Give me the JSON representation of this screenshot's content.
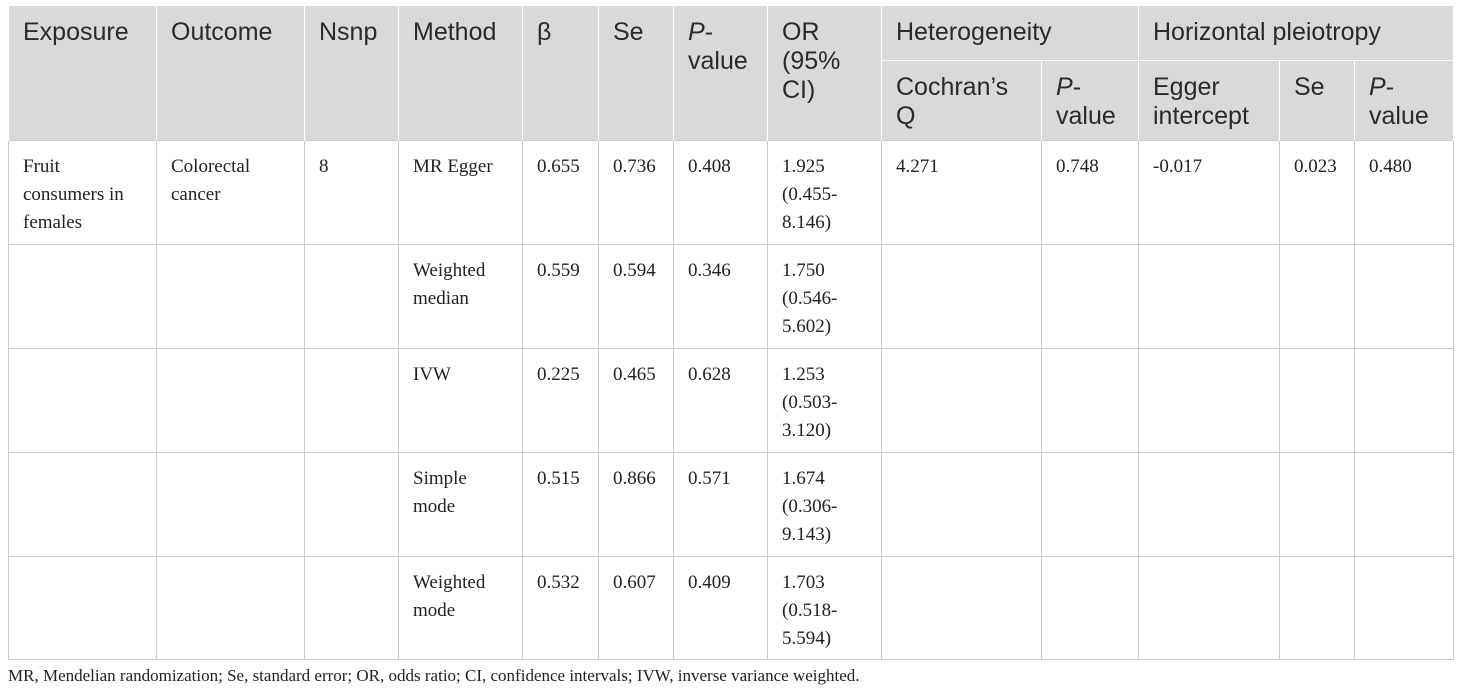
{
  "header": {
    "exposure": "Exposure",
    "outcome": "Outcome",
    "nsnp": "Nsnp",
    "method": "Method",
    "beta": "β",
    "se": "Se",
    "p_italic": "P",
    "p_rest": "-value",
    "or": "OR (95% CI)",
    "heterogeneity": "Heterogeneity",
    "horizontal_pleiotropy": "Horizontal pleiotropy",
    "cochrans_q": "Cochran’s Q",
    "het_p_italic": "P",
    "het_p_rest": "-value",
    "egger_intercept": "Egger intercept",
    "pleio_se": "Se",
    "pleio_p_italic": "P",
    "pleio_p_rest": "-value"
  },
  "rows": [
    {
      "exposure": "Fruit consumers in females",
      "outcome": "Colorectal cancer",
      "nsnp": "8",
      "method": "MR Egger",
      "beta": "0.655",
      "se": "0.736",
      "p": "0.408",
      "or": "1.925 (0.455-8.146)",
      "cochrans_q": "4.271",
      "het_p": "0.748",
      "egger_intercept": "-0.017",
      "pleio_se": "0.023",
      "pleio_p": "0.480"
    },
    {
      "exposure": "",
      "outcome": "",
      "nsnp": "",
      "method": "Weighted median",
      "beta": "0.559",
      "se": "0.594",
      "p": "0.346",
      "or": "1.750 (0.546-5.602)",
      "cochrans_q": "",
      "het_p": "",
      "egger_intercept": "",
      "pleio_se": "",
      "pleio_p": ""
    },
    {
      "exposure": "",
      "outcome": "",
      "nsnp": "",
      "method": "IVW",
      "beta": "0.225",
      "se": "0.465",
      "p": "0.628",
      "or": "1.253 (0.503-3.120)",
      "cochrans_q": "",
      "het_p": "",
      "egger_intercept": "",
      "pleio_se": "",
      "pleio_p": ""
    },
    {
      "exposure": "",
      "outcome": "",
      "nsnp": "",
      "method": "Simple mode",
      "beta": "0.515",
      "se": "0.866",
      "p": "0.571",
      "or": "1.674 (0.306-9.143)",
      "cochrans_q": "",
      "het_p": "",
      "egger_intercept": "",
      "pleio_se": "",
      "pleio_p": ""
    },
    {
      "exposure": "",
      "outcome": "",
      "nsnp": "",
      "method": "Weighted mode",
      "beta": "0.532",
      "se": "0.607",
      "p": "0.409",
      "or": "1.703 (0.518-5.594)",
      "cochrans_q": "",
      "het_p": "",
      "egger_intercept": "",
      "pleio_se": "",
      "pleio_p": ""
    }
  ],
  "footnote": "MR, Mendelian randomization; Se, standard error; OR, odds ratio; CI, confidence intervals; IVW, inverse variance weighted."
}
